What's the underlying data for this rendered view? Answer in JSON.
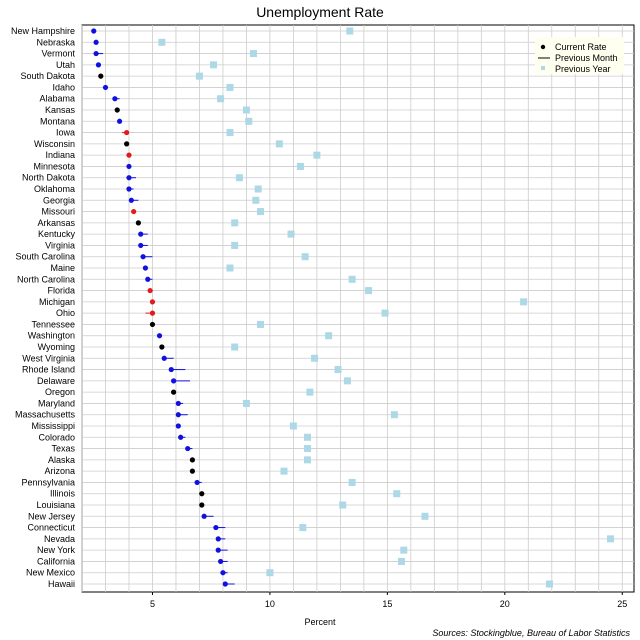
{
  "chart_data": {
    "type": "dot",
    "title": "Unemployment Rate",
    "xlabel": "Percent",
    "xlim": [
      2,
      25.5
    ],
    "xticks": [
      5,
      10,
      15,
      20,
      25
    ],
    "grid": true,
    "legend_position": "top-right",
    "legend": {
      "current": "Current Rate",
      "previous_month": "Previous Month",
      "previous_year": "Previous Year"
    },
    "colors": {
      "increase": "#e31a1c",
      "decrease": "#1010e0",
      "unchanged": "#000000",
      "previous_year": "#add8e6",
      "grid": "#cccccc",
      "legend_bg": "#fffff0"
    },
    "states": [
      {
        "name": "New Hampshire",
        "current": 2.5,
        "previous_month": 2.6,
        "previous_year": 13.4,
        "change": "down"
      },
      {
        "name": "Nebraska",
        "current": 2.6,
        "previous_month": 2.7,
        "previous_year": 5.4,
        "change": "down"
      },
      {
        "name": "Vermont",
        "current": 2.6,
        "previous_month": 2.9,
        "previous_year": 9.3,
        "change": "down"
      },
      {
        "name": "Utah",
        "current": 2.7,
        "previous_month": 2.8,
        "previous_year": 7.6,
        "change": "down"
      },
      {
        "name": "South Dakota",
        "current": 2.8,
        "previous_month": 2.8,
        "previous_year": 7.0,
        "change": "same"
      },
      {
        "name": "Idaho",
        "current": 3.0,
        "previous_month": 3.1,
        "previous_year": 8.3,
        "change": "down"
      },
      {
        "name": "Alabama",
        "current": 3.4,
        "previous_month": 3.6,
        "previous_year": 7.9,
        "change": "down"
      },
      {
        "name": "Kansas",
        "current": 3.5,
        "previous_month": 3.5,
        "previous_year": 9.0,
        "change": "same"
      },
      {
        "name": "Montana",
        "current": 3.6,
        "previous_month": 3.7,
        "previous_year": 9.1,
        "change": "down"
      },
      {
        "name": "Iowa",
        "current": 3.9,
        "previous_month": 3.7,
        "previous_year": 8.3,
        "change": "up"
      },
      {
        "name": "Wisconsin",
        "current": 3.9,
        "previous_month": 3.9,
        "previous_year": 10.4,
        "change": "same"
      },
      {
        "name": "Indiana",
        "current": 4.0,
        "previous_month": 3.9,
        "previous_year": 12.0,
        "change": "up"
      },
      {
        "name": "Minnesota",
        "current": 4.0,
        "previous_month": 4.1,
        "previous_year": 11.3,
        "change": "down"
      },
      {
        "name": "North Dakota",
        "current": 4.0,
        "previous_month": 4.3,
        "previous_year": 8.7,
        "change": "down"
      },
      {
        "name": "Oklahoma",
        "current": 4.0,
        "previous_month": 4.2,
        "previous_year": 9.5,
        "change": "down"
      },
      {
        "name": "Georgia",
        "current": 4.1,
        "previous_month": 4.4,
        "previous_year": 9.4,
        "change": "down"
      },
      {
        "name": "Missouri",
        "current": 4.2,
        "previous_month": 4.1,
        "previous_year": 9.6,
        "change": "up"
      },
      {
        "name": "Arkansas",
        "current": 4.4,
        "previous_month": 4.4,
        "previous_year": 8.5,
        "change": "same"
      },
      {
        "name": "Kentucky",
        "current": 4.5,
        "previous_month": 4.8,
        "previous_year": 10.9,
        "change": "down"
      },
      {
        "name": "Virginia",
        "current": 4.5,
        "previous_month": 4.8,
        "previous_year": 8.5,
        "change": "down"
      },
      {
        "name": "South Carolina",
        "current": 4.6,
        "previous_month": 5.0,
        "previous_year": 11.5,
        "change": "down"
      },
      {
        "name": "Maine",
        "current": 4.7,
        "previous_month": 4.8,
        "previous_year": 8.3,
        "change": "down"
      },
      {
        "name": "North Carolina",
        "current": 4.8,
        "previous_month": 5.0,
        "previous_year": 13.5,
        "change": "down"
      },
      {
        "name": "Florida",
        "current": 4.9,
        "previous_month": 4.8,
        "previous_year": 14.2,
        "change": "up"
      },
      {
        "name": "Michigan",
        "current": 5.0,
        "previous_month": 4.9,
        "previous_year": 20.8,
        "change": "up"
      },
      {
        "name": "Ohio",
        "current": 5.0,
        "previous_month": 4.7,
        "previous_year": 14.9,
        "change": "up"
      },
      {
        "name": "Tennessee",
        "current": 5.0,
        "previous_month": 5.0,
        "previous_year": 9.6,
        "change": "same"
      },
      {
        "name": "Washington",
        "current": 5.3,
        "previous_month": 5.4,
        "previous_year": 12.5,
        "change": "down"
      },
      {
        "name": "Wyoming",
        "current": 5.4,
        "previous_month": 5.4,
        "previous_year": 8.5,
        "change": "same"
      },
      {
        "name": "West Virginia",
        "current": 5.5,
        "previous_month": 5.9,
        "previous_year": 11.9,
        "change": "down"
      },
      {
        "name": "Rhode Island",
        "current": 5.8,
        "previous_month": 6.4,
        "previous_year": 12.9,
        "change": "down"
      },
      {
        "name": "Delaware",
        "current": 5.9,
        "previous_month": 6.6,
        "previous_year": 13.3,
        "change": "down"
      },
      {
        "name": "Oregon",
        "current": 5.9,
        "previous_month": 5.9,
        "previous_year": 11.7,
        "change": "same"
      },
      {
        "name": "Maryland",
        "current": 6.1,
        "previous_month": 6.3,
        "previous_year": 9.0,
        "change": "down"
      },
      {
        "name": "Massachusetts",
        "current": 6.1,
        "previous_month": 6.5,
        "previous_year": 15.3,
        "change": "down"
      },
      {
        "name": "Mississippi",
        "current": 6.1,
        "previous_month": 6.2,
        "previous_year": 11.0,
        "change": "down"
      },
      {
        "name": "Colorado",
        "current": 6.2,
        "previous_month": 6.4,
        "previous_year": 11.6,
        "change": "down"
      },
      {
        "name": "Texas",
        "current": 6.5,
        "previous_month": 6.7,
        "previous_year": 11.6,
        "change": "down"
      },
      {
        "name": "Alaska",
        "current": 6.7,
        "previous_month": 6.7,
        "previous_year": 11.6,
        "change": "same"
      },
      {
        "name": "Arizona",
        "current": 6.7,
        "previous_month": 6.7,
        "previous_year": 10.6,
        "change": "same"
      },
      {
        "name": "Pennsylvania",
        "current": 6.9,
        "previous_month": 7.1,
        "previous_year": 13.5,
        "change": "down"
      },
      {
        "name": "Illinois",
        "current": 7.1,
        "previous_month": 7.1,
        "previous_year": 15.4,
        "change": "same"
      },
      {
        "name": "Louisiana",
        "current": 7.1,
        "previous_month": 7.1,
        "previous_year": 13.1,
        "change": "same"
      },
      {
        "name": "New Jersey",
        "current": 7.2,
        "previous_month": 7.6,
        "previous_year": 16.6,
        "change": "down"
      },
      {
        "name": "Connecticut",
        "current": 7.7,
        "previous_month": 8.1,
        "previous_year": 11.4,
        "change": "down"
      },
      {
        "name": "Nevada",
        "current": 7.8,
        "previous_month": 8.1,
        "previous_year": 24.5,
        "change": "down"
      },
      {
        "name": "New York",
        "current": 7.8,
        "previous_month": 8.2,
        "previous_year": 15.7,
        "change": "down"
      },
      {
        "name": "California",
        "current": 7.9,
        "previous_month": 8.2,
        "previous_year": 15.6,
        "change": "down"
      },
      {
        "name": "New Mexico",
        "current": 8.0,
        "previous_month": 8.2,
        "previous_year": 10.0,
        "change": "down"
      },
      {
        "name": "Hawaii",
        "current": 8.1,
        "previous_month": 8.5,
        "previous_year": 21.9,
        "change": "down"
      }
    ],
    "source": "Sources: Stockingblue, Bureau of Labor Statistics"
  }
}
